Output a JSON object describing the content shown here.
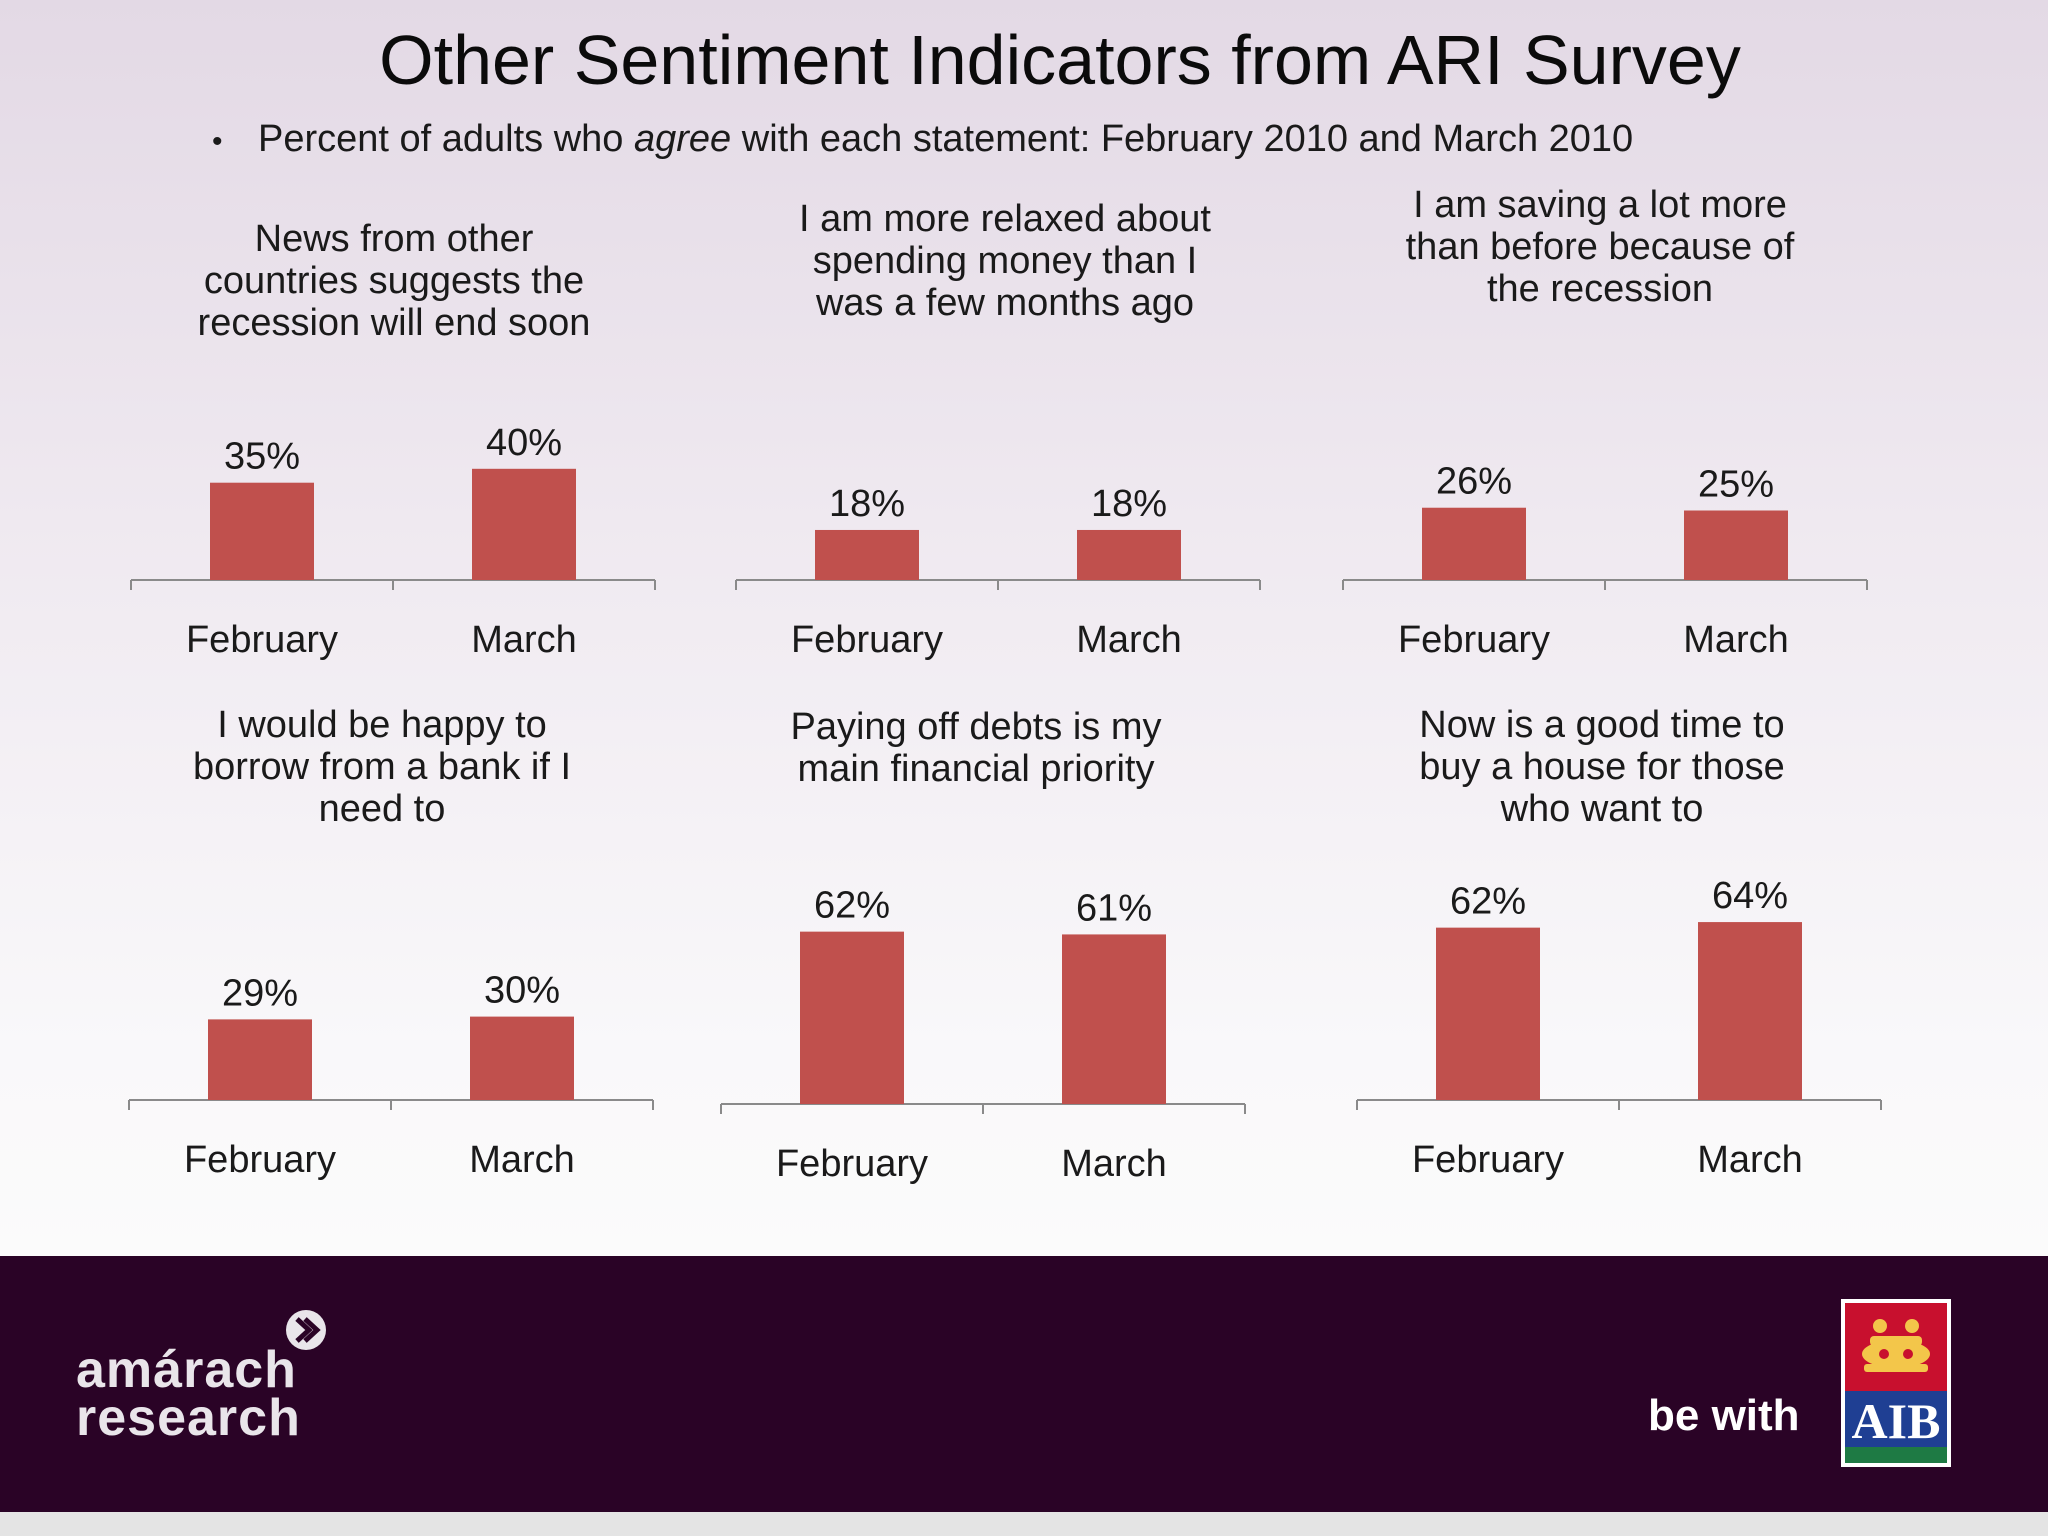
{
  "title": "Other Sentiment Indicators from ARI Survey",
  "subtitle": {
    "bullet": "•",
    "before": "Percent of adults who ",
    "emphasis": "agree",
    "after": " with each statement: February 2010 and March 2010"
  },
  "colors": {
    "bar": "#c0504d",
    "axis": "#8a8a8a",
    "footer": "#2a0326"
  },
  "chart_data": [
    {
      "type": "bar",
      "title": "News from other countries suggests the recession will end soon",
      "title_lines": [
        "News from other",
        "countries suggests the",
        "recession will end soon"
      ],
      "categories": [
        "February",
        "March"
      ],
      "values": [
        35,
        40
      ],
      "labels": [
        "35%",
        "40%"
      ]
    },
    {
      "type": "bar",
      "title": "I am more relaxed about spending money than I was a few months ago",
      "title_lines": [
        "I am more relaxed about",
        "spending money than I",
        "was a few months ago"
      ],
      "categories": [
        "February",
        "March"
      ],
      "values": [
        18,
        18
      ],
      "labels": [
        "18%",
        "18%"
      ]
    },
    {
      "type": "bar",
      "title": "I am saving a lot more than before because of the recession",
      "title_lines": [
        "I am saving a lot more",
        "than before because of",
        "the recession"
      ],
      "categories": [
        "February",
        "March"
      ],
      "values": [
        26,
        25
      ],
      "labels": [
        "26%",
        "25%"
      ]
    },
    {
      "type": "bar",
      "title": "I would be happy to borrow from a bank if I need to",
      "title_lines": [
        "I would be happy to",
        "borrow from a bank if I",
        "need to"
      ],
      "categories": [
        "February",
        "March"
      ],
      "values": [
        29,
        30
      ],
      "labels": [
        "29%",
        "30%"
      ]
    },
    {
      "type": "bar",
      "title": "Paying off debts is my main financial priority",
      "title_lines": [
        "Paying  off debts is my",
        "main financial priority"
      ],
      "categories": [
        "February",
        "March"
      ],
      "values": [
        62,
        61
      ],
      "labels": [
        "62%",
        "61%"
      ]
    },
    {
      "type": "bar",
      "title": "Now is a good time to buy a house for those who want to",
      "title_lines": [
        "Now is a good time to",
        "buy a house for those",
        "who want to"
      ],
      "categories": [
        "February",
        "March"
      ],
      "values": [
        62,
        64
      ],
      "labels": [
        "62%",
        "64%"
      ]
    }
  ],
  "footer": {
    "logo_line1": "amárach",
    "logo_line2": "research",
    "tagline": "be with",
    "brand": "AIB"
  }
}
